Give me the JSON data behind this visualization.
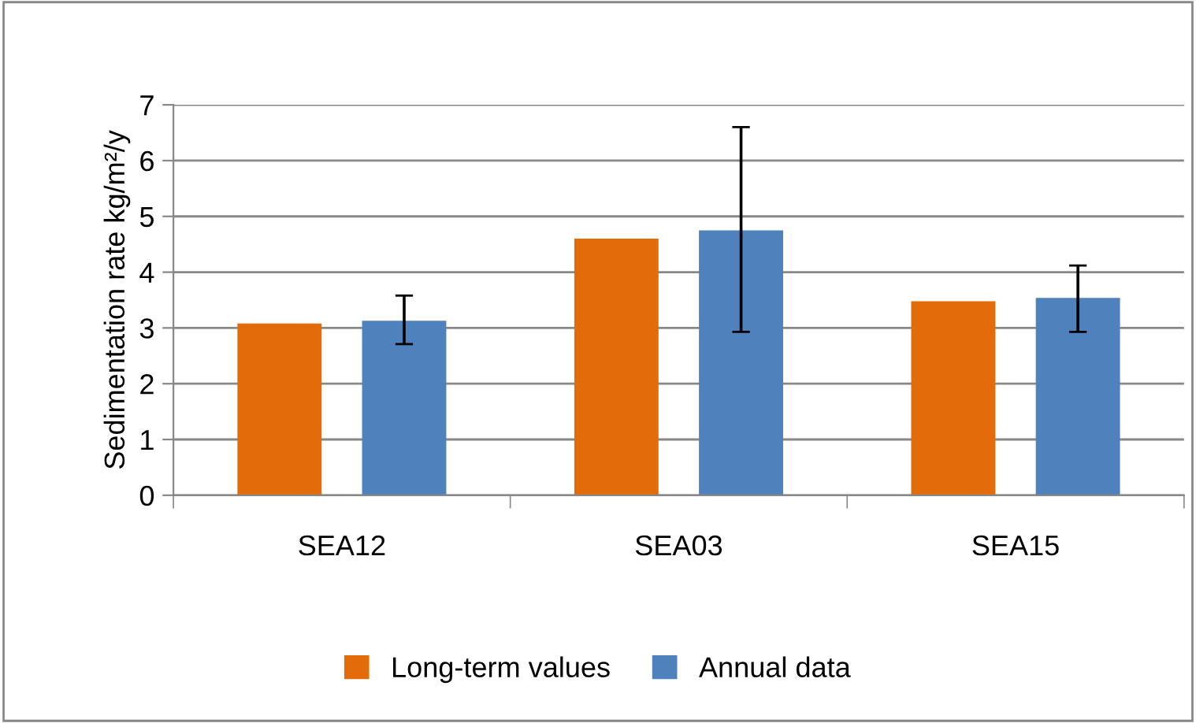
{
  "chart_data": {
    "type": "bar",
    "ylabel": "Sedimentation rate kg/m²/y",
    "categories": [
      "SEA12",
      "SEA03",
      "SEA15"
    ],
    "series": [
      {
        "name": "Long-term values",
        "color": "#e36c0a",
        "values": [
          3.08,
          4.6,
          3.48
        ]
      },
      {
        "name": "Annual data",
        "color": "#4f81bd",
        "values": [
          3.13,
          4.75,
          3.54
        ],
        "errors": [
          [
            2.71,
            3.58
          ],
          [
            2.93,
            6.6
          ],
          [
            2.93,
            4.12
          ]
        ]
      }
    ],
    "ylim": [
      0,
      7
    ],
    "yticks": [
      0,
      1,
      2,
      3,
      4,
      5,
      6,
      7
    ],
    "grid": "y",
    "legend": "bottom"
  }
}
